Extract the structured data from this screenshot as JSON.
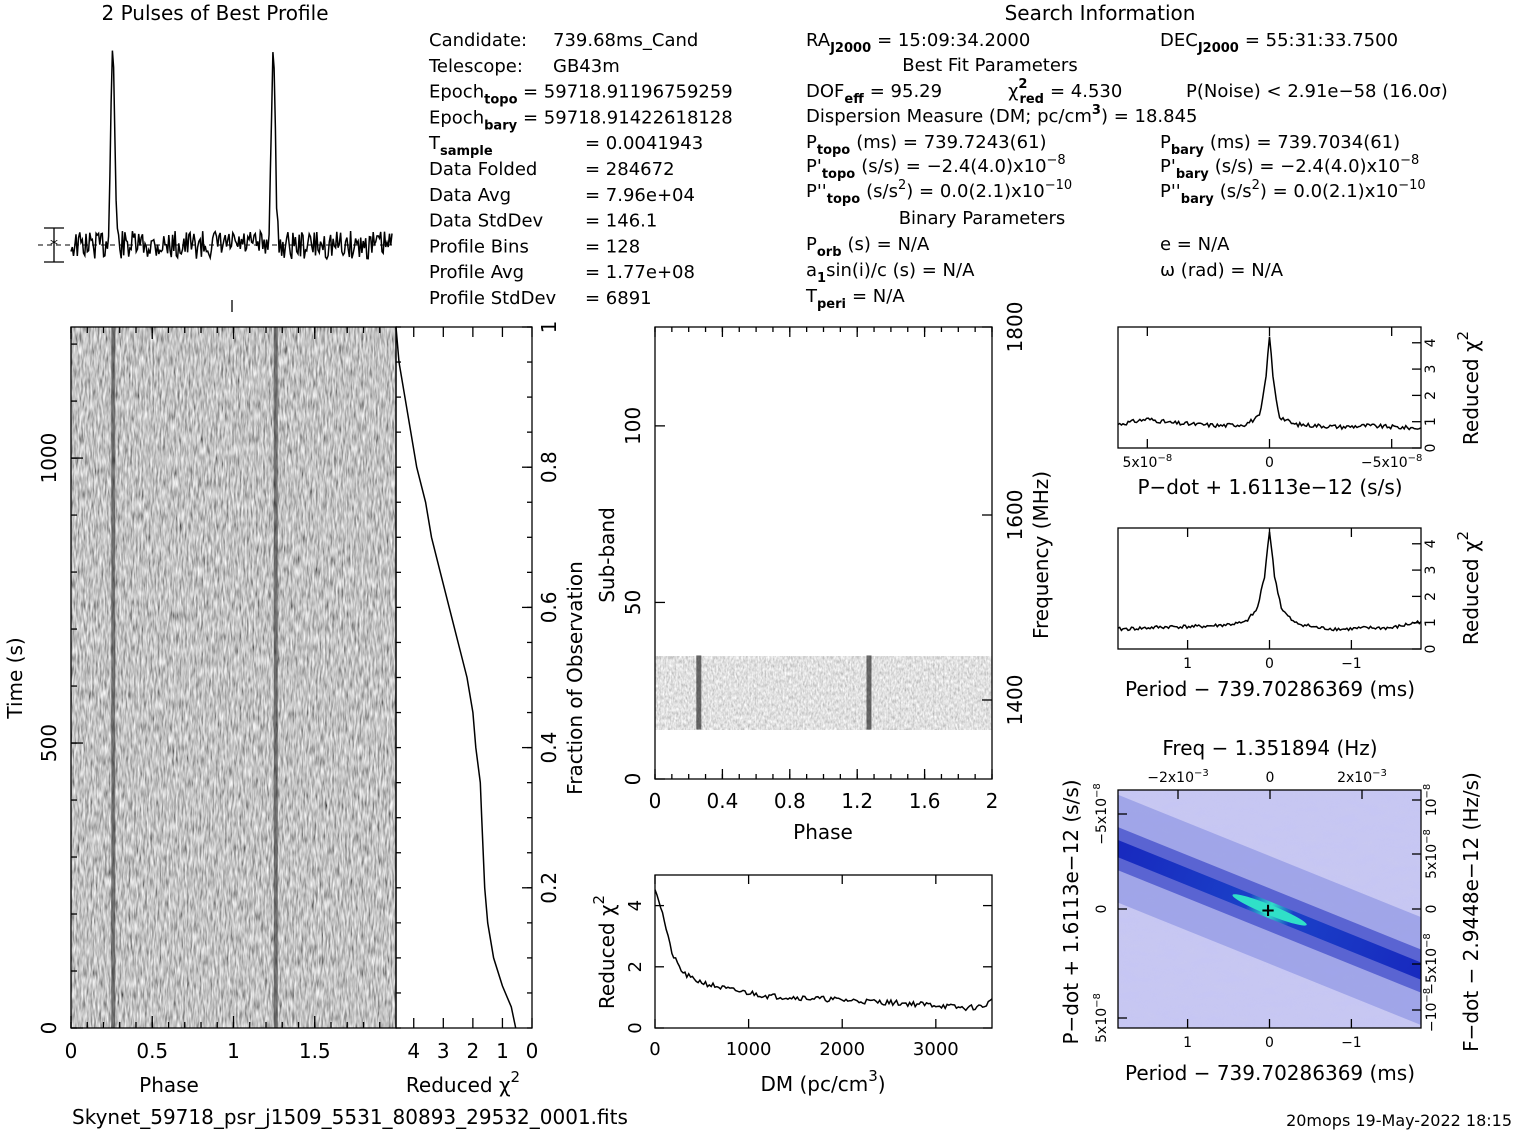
{
  "page": {
    "footer_file": "Skynet_59718_psr_j1509_5531_80893_29532_0001.fits",
    "footer_stamp": "20mops 19-May-2022 18:15"
  },
  "header": {
    "profile_title": "2 Pulses of Best Profile",
    "search_title": "Search Information",
    "best_fit_title": "Best Fit Parameters",
    "binary_title": "Binary Parameters"
  },
  "info_left": [
    {
      "label": "Candidate:",
      "value": "739.68ms_Cand"
    },
    {
      "label": "Telescope:",
      "value": "GB43m"
    },
    {
      "label": "Epoch",
      "sub": "topo",
      "value": "= 59718.91196759259"
    },
    {
      "label": "Epoch",
      "sub": "bary",
      "value": "= 59718.91422618128"
    },
    {
      "label": "T",
      "sub": "sample",
      "value": "=   0.0041943"
    },
    {
      "label": "Data Folded",
      "value": "=   284672"
    },
    {
      "label": "Data Avg",
      "value": "=   7.96e+04"
    },
    {
      "label": "Data StdDev",
      "value": "=   146.1"
    },
    {
      "label": "Profile Bins",
      "value": "=   128"
    },
    {
      "label": "Profile Avg",
      "value": "=   1.77e+08"
    },
    {
      "label": "Profile StdDev",
      "value": "=   6891"
    }
  ],
  "info_mid": {
    "ra": "RA",
    "ra_sub": "J2000",
    "ra_val": "= 15:09:34.2000",
    "dec": "DEC",
    "dec_sub": "J2000",
    "dec_val": "= 55:31:33.7500",
    "dof": "DOF",
    "dof_sub": "eff",
    "dof_val": "= 95.29",
    "chi": "χ",
    "chi_sup": "2",
    "chi_sub": "red",
    "chi_val": "= 4.530",
    "pnoise": "P(Noise) < 2.91e−58   (16.0σ)",
    "dm_line": "Dispersion Measure (DM; pc/cm",
    "dm_sup": "3",
    "dm_val": ") = 18.845",
    "ptopo": "P",
    "ptopo_sub": "topo",
    "ptopo_val": "(ms)  =   739.7243(61)",
    "pdtopo": "P'",
    "pdtopo_sub": "topo",
    "pdtopo_val": "(s/s) = −2.4(4.0)x10",
    "pdtopo_exp": "−8",
    "pddtopo": "P''",
    "pddtopo_sub": "topo",
    "pddtopo_val": "(s/s",
    "pddtopo_sup": "2",
    "pddtopo_val2": ") = 0.0(2.1)x10",
    "pddtopo_exp": "−10",
    "porb": "P",
    "porb_sub": "orb",
    "porb_val": "(s) = N/A",
    "a1": "a",
    "a1_sub": "1",
    "a1_val": "sin(i)/c (s) = N/A",
    "tperi": "T",
    "tperi_sub": "peri",
    "tperi_val": "= N/A"
  },
  "info_right": {
    "pbary": "P",
    "pbary_sub": "bary",
    "pbary_val": "(ms)  =   739.7034(61)",
    "pdbary": "P'",
    "pdbary_sub": "bary",
    "pdbary_val": "(s/s) = −2.4(4.0)x10",
    "pdbary_exp": "−8",
    "pddbary": "P''",
    "pddbary_sub": "bary",
    "pddbary_val": "(s/s",
    "pddbary_sup": "2",
    "pddbary_val2": ") = 0.0(2.1)x10",
    "pddbary_exp": "−10",
    "e": "e = N/A",
    "omega": "ω (rad) = N/A"
  },
  "colors": {
    "ppdot_dark": "#1018b8",
    "ppdot_mid": "#5a66d8",
    "ppdot_light": "#c8c8f0",
    "ppdot_peak": "#30e0c8"
  },
  "chart_data": [
    {
      "id": "profile",
      "type": "line",
      "title": "2 Pulses of Best Profile",
      "xlim": [
        0,
        2
      ],
      "peaks_phase": [
        0.26,
        1.26
      ],
      "baseline_rel": 0.0,
      "peak_rel": 1.0,
      "errorbar_marker": "*"
    },
    {
      "id": "time-phase",
      "type": "heatmap",
      "xlabel": "Phase",
      "ylabel": "Time (s)",
      "xlim": [
        0,
        2
      ],
      "ylim": [
        0,
        1230
      ],
      "x_ticks": [
        "0",
        "0.5",
        "1",
        "1.5"
      ],
      "y_ticks": [
        "0",
        "500",
        "1000"
      ],
      "pulse_phases": [
        0.26,
        1.26
      ]
    },
    {
      "id": "time-chi2",
      "type": "line",
      "xlabel": "Reduced χ",
      "xlabel_sup": "2",
      "ylabel_right": "Fraction of Observation",
      "x_ticks": [
        "4",
        "3",
        "2",
        "1",
        "0"
      ],
      "y_ticks": [
        "0.2",
        "0.4",
        "0.6",
        "0.8",
        "1"
      ],
      "xlim": [
        4.6,
        0
      ],
      "ylim": [
        0,
        1
      ],
      "frac": [
        0,
        0.03,
        0.06,
        0.1,
        0.15,
        0.2,
        0.3,
        0.35,
        0.4,
        0.45,
        0.5,
        0.55,
        0.6,
        0.65,
        0.7,
        0.75,
        0.8,
        0.85,
        0.9,
        0.95,
        1.0
      ],
      "chi2": [
        0.55,
        0.7,
        1.0,
        1.3,
        1.5,
        1.6,
        1.7,
        1.75,
        1.9,
        2.0,
        2.2,
        2.5,
        2.8,
        3.1,
        3.4,
        3.6,
        3.9,
        4.1,
        4.3,
        4.5,
        4.6
      ]
    },
    {
      "id": "subband-phase",
      "type": "heatmap",
      "xlabel": "Phase",
      "ylabel": "Sub-band",
      "ylabel_right": "Frequency (MHz)",
      "x_ticks": [
        "0",
        "0.4",
        "0.8",
        "1.2",
        "1.6",
        "2"
      ],
      "y_ticks": [
        "0",
        "50",
        "100"
      ],
      "y2_ticks": [
        "1400",
        "1600",
        "1800"
      ],
      "xlim": [
        0,
        2
      ],
      "ylim": [
        0,
        128
      ],
      "data_band": [
        14,
        35
      ],
      "pulse_phases": [
        0.26,
        1.27
      ]
    },
    {
      "id": "dm-chi2",
      "type": "line",
      "xlabel": "DM (pc/cm",
      "xlabel_sup": "3",
      "xlabel_end": ")",
      "ylabel": "Reduced χ",
      "ylabel_sup": "2",
      "x_ticks": [
        "0",
        "1000",
        "2000",
        "3000"
      ],
      "y_ticks": [
        "0",
        "2",
        "4"
      ],
      "xlim": [
        0,
        3600
      ],
      "ylim": [
        0,
        5
      ],
      "x": [
        0,
        50,
        100,
        150,
        200,
        300,
        400,
        600,
        800,
        1000,
        1200,
        1500,
        1800,
        2100,
        2400,
        2700,
        3000,
        3300,
        3500,
        3600
      ],
      "y": [
        4.6,
        4.1,
        3.5,
        2.8,
        2.3,
        1.8,
        1.6,
        1.4,
        1.25,
        1.15,
        1.05,
        1.0,
        0.95,
        0.9,
        0.85,
        0.8,
        0.75,
        0.65,
        0.7,
        0.9
      ]
    },
    {
      "id": "pdot-chi2",
      "type": "line",
      "xlabel": "P−dot + 1.6113e−12 (s/s)",
      "ylabel_right": "Reduced χ",
      "ylabel_right_sup": "2",
      "x_ticks": [
        "5x10",
        "0",
        "−5x10"
      ],
      "x_tick_exp": "−8",
      "y_ticks": [
        "0",
        "1",
        "2",
        "3",
        "4"
      ],
      "xlim": [
        6.2e-08,
        -6.2e-08
      ],
      "ylim": [
        0,
        4.6
      ],
      "x": [
        6.2e-08,
        5e-08,
        4e-08,
        3e-08,
        2e-08,
        1e-08,
        4e-09,
        1.5e-09,
        0,
        -1.5e-09,
        -4e-09,
        -1e-08,
        -2e-08,
        -3e-08,
        -4e-08,
        -5e-08,
        -6.2e-08
      ],
      "y": [
        0.9,
        1.1,
        0.95,
        0.9,
        0.85,
        0.9,
        1.2,
        2.6,
        4.3,
        2.6,
        1.2,
        0.9,
        0.85,
        0.8,
        0.85,
        0.8,
        0.75
      ]
    },
    {
      "id": "period-chi2",
      "type": "line",
      "xlabel": "Period − 739.70286369 (ms)",
      "ylabel_right": "Reduced χ",
      "ylabel_right_sup": "2",
      "x_ticks": [
        "1",
        "0",
        "−1"
      ],
      "y_ticks": [
        "0",
        "1",
        "2",
        "3",
        "4"
      ],
      "xlim": [
        1.85,
        -1.85
      ],
      "ylim": [
        0,
        4.6
      ],
      "x": [
        1.85,
        1.5,
        1.2,
        0.9,
        0.6,
        0.3,
        0.15,
        0.06,
        0,
        -0.06,
        -0.15,
        -0.3,
        -0.6,
        -0.9,
        -1.2,
        -1.5,
        -1.85
      ],
      "y": [
        0.75,
        0.8,
        0.85,
        0.85,
        0.9,
        1.0,
        1.5,
        2.8,
        4.5,
        2.8,
        1.5,
        1.0,
        0.8,
        0.75,
        0.8,
        0.8,
        1.05
      ]
    },
    {
      "id": "ppdot-map",
      "type": "heatmap",
      "title": "Freq − 1.351894 (Hz)",
      "xlabel": "Period − 739.70286369 (ms)",
      "ylabel": "P−dot + 1.6113e−12 (s/s)",
      "ylabel_right": "F−dot − 2.9448e−12 (Hz/s)",
      "x_ticks": [
        "1",
        "0",
        "−1"
      ],
      "x2_ticks": [
        "−2x10",
        "0",
        "2x10"
      ],
      "x2_tick_exp": "−3",
      "y_ticks": [
        "5x10",
        "0",
        "−5x10"
      ],
      "y_tick_exp": "−8",
      "y2_ticks": [
        "−10",
        "−5x10",
        "0",
        "5x10",
        "10"
      ],
      "y2_tick_exp": "−8",
      "xlim": [
        1.85,
        -1.85
      ],
      "best": [
        0,
        0
      ]
    }
  ]
}
